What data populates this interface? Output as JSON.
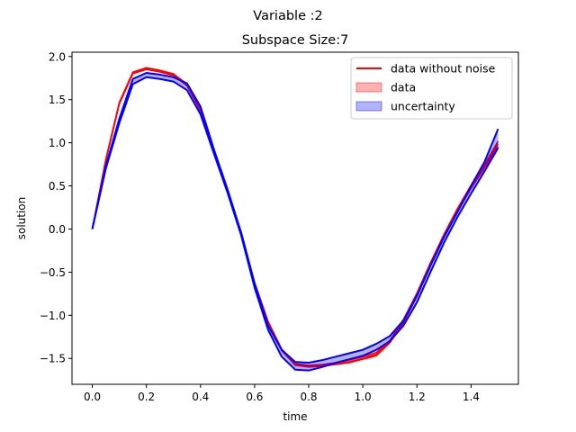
{
  "chart_data": {
    "type": "line",
    "suptitle": "Variable :2",
    "title": "Subspace Size:7",
    "xlabel": "time",
    "ylabel": "solution",
    "xlim": [
      -0.075,
      1.575
    ],
    "ylim": [
      -1.8,
      2.05
    ],
    "xticks": [
      0.0,
      0.2,
      0.4,
      0.6,
      0.8,
      1.0,
      1.2,
      1.4
    ],
    "xtick_labels": [
      "0.0",
      "0.2",
      "0.4",
      "0.6",
      "0.8",
      "1.0",
      "1.2",
      "1.4"
    ],
    "yticks": [
      -1.5,
      -1.0,
      -0.5,
      0.0,
      0.5,
      1.0,
      1.5,
      2.0
    ],
    "ytick_labels": [
      "−1.5",
      "−1.0",
      "−0.5",
      "0.0",
      "0.5",
      "1.0",
      "1.5",
      "2.0"
    ],
    "grid": false,
    "legend_position": "top-right",
    "x": [
      0.0,
      0.05,
      0.1,
      0.15,
      0.2,
      0.25,
      0.3,
      0.35,
      0.4,
      0.45,
      0.5,
      0.55,
      0.6,
      0.65,
      0.7,
      0.75,
      0.8,
      0.85,
      0.9,
      0.95,
      1.0,
      1.05,
      1.1,
      1.15,
      1.2,
      1.25,
      1.3,
      1.35,
      1.4,
      1.45,
      1.5
    ],
    "series": [
      {
        "name": "data without noise",
        "kind": "line",
        "color": "#ff0000",
        "values": [
          0.0,
          0.8,
          1.46,
          1.81,
          1.86,
          1.83,
          1.79,
          1.67,
          1.38,
          0.89,
          0.43,
          -0.04,
          -0.63,
          -1.08,
          -1.4,
          -1.57,
          -1.59,
          -1.58,
          -1.56,
          -1.54,
          -1.5,
          -1.45,
          -1.31,
          -1.07,
          -0.76,
          -0.41,
          -0.08,
          0.22,
          0.49,
          0.73,
          0.99
        ]
      },
      {
        "name": "data",
        "kind": "band",
        "color": "#ff0000",
        "lower": [
          0.0,
          0.79,
          1.45,
          1.8,
          1.85,
          1.82,
          1.78,
          1.66,
          1.37,
          0.88,
          0.42,
          -0.05,
          -0.64,
          -1.09,
          -1.41,
          -1.58,
          -1.6,
          -1.59,
          -1.57,
          -1.55,
          -1.51,
          -1.47,
          -1.32,
          -1.09,
          -0.78,
          -0.43,
          -0.1,
          0.2,
          0.47,
          0.71,
          0.96
        ],
        "upper": [
          0.0,
          0.81,
          1.47,
          1.82,
          1.87,
          1.84,
          1.8,
          1.68,
          1.39,
          0.9,
          0.44,
          -0.03,
          -0.62,
          -1.07,
          -1.39,
          -1.56,
          -1.58,
          -1.57,
          -1.55,
          -1.52,
          -1.48,
          -1.43,
          -1.29,
          -1.05,
          -0.74,
          -0.39,
          -0.06,
          0.24,
          0.51,
          0.75,
          1.02
        ]
      },
      {
        "name": "uncertainty",
        "kind": "band",
        "color": "#0000ff",
        "lower": [
          0.0,
          0.7,
          1.23,
          1.68,
          1.76,
          1.74,
          1.71,
          1.61,
          1.33,
          0.87,
          0.42,
          -0.07,
          -0.68,
          -1.17,
          -1.48,
          -1.63,
          -1.64,
          -1.6,
          -1.55,
          -1.51,
          -1.47,
          -1.4,
          -1.3,
          -1.12,
          -0.85,
          -0.5,
          -0.16,
          0.14,
          0.41,
          0.67,
          0.94
        ],
        "upper": [
          0.0,
          0.73,
          1.28,
          1.74,
          1.81,
          1.79,
          1.76,
          1.69,
          1.42,
          0.92,
          0.46,
          -0.04,
          -0.63,
          -1.12,
          -1.4,
          -1.54,
          -1.55,
          -1.52,
          -1.48,
          -1.44,
          -1.4,
          -1.33,
          -1.24,
          -1.06,
          -0.77,
          -0.42,
          -0.09,
          0.2,
          0.5,
          0.78,
          1.16
        ]
      }
    ]
  }
}
